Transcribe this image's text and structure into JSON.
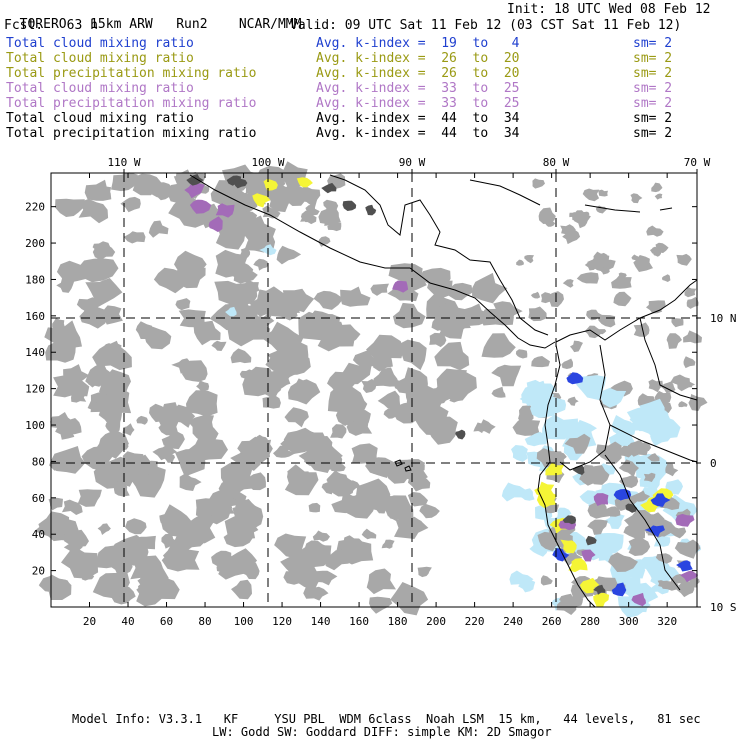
{
  "header": {
    "model": "TORERO",
    "resolution": "15km ARW",
    "run": "Run2",
    "org": "NCAR/MMM",
    "init_label": "Init: 18 UTC Wed 08 Feb 12",
    "fcst_label": "Fcst.",
    "fcst_hours": "63 h",
    "valid_label": "Valid: 09 UTC Sat 11 Feb 12 (03 CST Sat 11 Feb 12)"
  },
  "legend": [
    {
      "field": "Total cloud mixing ratio",
      "index": "Avg. k-index =  19  to   4",
      "sm": "sm= 2",
      "color": "#1f3fcf"
    },
    {
      "field": "Total cloud mixing ratio",
      "index": "Avg. k-index =  26  to  20",
      "sm": "sm= 2",
      "color": "#9a9a14"
    },
    {
      "field": "Total precipitation mixing ratio",
      "index": "Avg. k-index =  26  to  20",
      "sm": "sm= 2",
      "color": "#9a9a14"
    },
    {
      "field": "Total cloud mixing ratio",
      "index": "Avg. k-index =  33  to  25",
      "sm": "sm= 2",
      "color": "#b077c6"
    },
    {
      "field": "Total precipitation mixing ratio",
      "index": "Avg. k-index =  33  to  25",
      "sm": "sm= 2",
      "color": "#b077c6"
    },
    {
      "field": "Total cloud mixing ratio",
      "index": "Avg. k-index =  44  to  34",
      "sm": "sm= 2",
      "color": "#000000"
    },
    {
      "field": "Total precipitation mixing ratio",
      "index": "Avg. k-index =  44  to  34",
      "sm": "sm= 2",
      "color": "#000000"
    }
  ],
  "map": {
    "lon_labels": [
      "110 W",
      "100 W",
      "90 W",
      "80 W",
      "70 W"
    ],
    "lat_labels": [
      "10 N",
      "0",
      "10 S"
    ],
    "y_ticks": [
      "220",
      "200",
      "180",
      "160",
      "140",
      "120",
      "100",
      "80",
      "60",
      "40",
      "20"
    ],
    "x_ticks": [
      "20",
      "40",
      "60",
      "80",
      "100",
      "120",
      "140",
      "160",
      "180",
      "200",
      "220",
      "240",
      "260",
      "280",
      "300",
      "320"
    ],
    "colors": {
      "gray": "#a8a8a8",
      "dark": "#505050",
      "blue": "#2a45e0",
      "lightblue": "#bfe8f8",
      "yellow": "#f5f536",
      "purple": "#a36bb8"
    }
  },
  "footer": {
    "line1": "Model Info: V3.3.1   KF     YSU PBL  WDM 6class  Noah LSM  15 km,   44 levels,   81 sec",
    "line2": "LW: Godd SW: Goddard DIFF: simple KM: 2D Smagor"
  }
}
